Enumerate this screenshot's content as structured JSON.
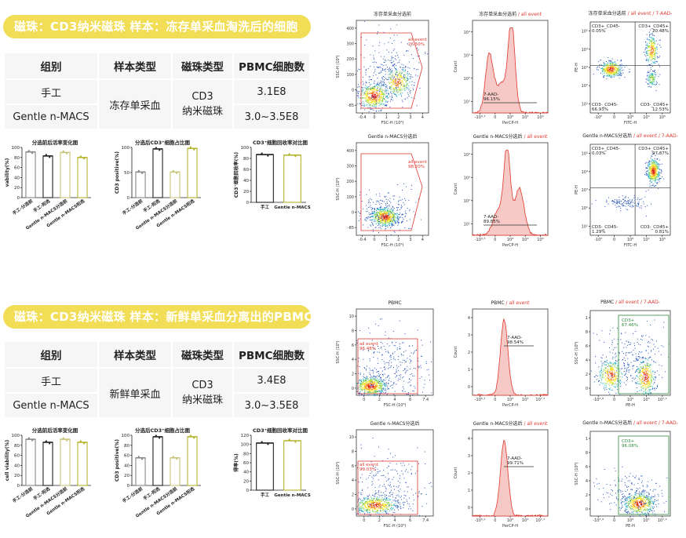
{
  "sections": [
    {
      "banner": "磁珠：CD3纳米磁珠   样本：冻存单采血淘洗后的细胞",
      "table": {
        "headers": [
          "组别",
          "样本类型",
          "磁珠类型",
          "PBMC细胞数"
        ],
        "row1": {
          "group": "手工",
          "count": "3.1E8"
        },
        "row2": {
          "group": "Gentle n-MACS",
          "count": "3.0~3.5E8"
        },
        "sample_type": "冻存单采血",
        "bead_type_l1": "CD3",
        "bead_type_l2": "纳米磁珠"
      },
      "bar_charts": [
        {
          "title": "分选前后活率变化图",
          "ylabel": "vability(%)",
          "ylim": [
            0,
            100
          ],
          "ticks": [
            "0",
            "20",
            "40",
            "60",
            "80",
            "100"
          ],
          "categories": [
            "手工-分选前",
            "手工-阳选",
            "Gentle n-MACS分选前",
            "Gentle n-MACS阳选"
          ],
          "values": [
            91,
            83,
            90,
            80
          ],
          "colors": [
            "#888888",
            "#222222",
            "#c9c47a",
            "#b5b32c"
          ]
        },
        {
          "title": "分选后CD3⁺细胞占比图",
          "ylabel": "CD3 positive(%)",
          "ylim": [
            0,
            100
          ],
          "ticks": [
            "0",
            "50",
            "100"
          ],
          "categories": [
            "手工-分选前",
            "手工-阳选",
            "Gentle n-MACS分选前",
            "Gentle n-MACS阳选"
          ],
          "values": [
            51,
            97,
            51,
            98
          ],
          "colors": [
            "#888888",
            "#222222",
            "#c9c47a",
            "#b5b32c"
          ]
        },
        {
          "title": "CD3⁺细胞回收率对比图",
          "ylabel": "CD3⁺细胞回收率(%)",
          "ylim": [
            0,
            100
          ],
          "ticks": [
            "0",
            "20",
            "40",
            "60",
            "80",
            "100"
          ],
          "categories": [
            "手工",
            "Gentle n-MACS"
          ],
          "values": [
            87,
            86
          ],
          "colors": [
            "#222222",
            "#b5b32c"
          ]
        }
      ],
      "flow_rows": [
        {
          "scatter_title": "冻存单采血分选前",
          "scatter_gate": "all event",
          "scatter_pct": "26.50%",
          "hist_title": "冻存单采血分选前",
          "hist_suffix": "/ all event",
          "hist_label": "7-AAD-",
          "hist_pct": "96.15%",
          "quad_title": "冻存单采血分选前",
          "quad_suffix": "/ all event / 7-AAD-",
          "q_ul": "CD3+_CD45-",
          "q_ul_v": "0.05%",
          "q_ur": "CD3+_CD45+",
          "q_ur_v": "20.48%",
          "q_ll": "CD3-_CD45-",
          "q_ll_v": "66.93%",
          "q_lr": "CD3-_CD45+",
          "q_lr_v": "12.53%"
        },
        {
          "scatter_title": "Gentle n-MACS分选后",
          "scatter_gate": "all event",
          "scatter_pct": "98.20%",
          "hist_title": "Gentle n-MACS分选后",
          "hist_suffix": "/ all event",
          "hist_label": "7-AAD-",
          "hist_pct": "89.85%",
          "quad_title": "Gentle n-MACS分选后",
          "quad_suffix": "/ all event / 7-AAD-",
          "q_ul": "CD3+_CD45-",
          "q_ul_v": "0.03%",
          "q_ur": "CD3+_CD45+",
          "q_ur_v": "97.87%",
          "q_ll": "CD3-_CD45-",
          "q_ll_v": "1.29%",
          "q_lr": "CD3-_CD45+",
          "q_lr_v": "0.81%"
        }
      ]
    },
    {
      "banner": "磁珠：CD3纳米磁珠   样本：新鲜单采血分离出的PBMC",
      "table": {
        "headers": [
          "组别",
          "样本类型",
          "磁珠类型",
          "PBMC细胞数"
        ],
        "row1": {
          "group": "手工",
          "count": "3.4E8"
        },
        "row2": {
          "group": "Gentle n-MACS",
          "count": "3.0~3.5E8"
        },
        "sample_type": "新鲜单采血",
        "bead_type_l1": "CD3",
        "bead_type_l2": "纳米磁珠"
      },
      "bar_charts": [
        {
          "title": "分选前后活率变化图",
          "ylabel": "cell viability(%)",
          "ylim": [
            0,
            100
          ],
          "ticks": [
            "0",
            "20",
            "40",
            "60",
            "80",
            "100"
          ],
          "categories": [
            "手工-分选前",
            "手工-阳选",
            "Gentle n-MACS分选前",
            "Gentle n-MACS阳选"
          ],
          "values": [
            92,
            86,
            92,
            86
          ],
          "colors": [
            "#888888",
            "#222222",
            "#c9c47a",
            "#b5b32c"
          ]
        },
        {
          "title": "分选后CD3⁺细胞占比图",
          "ylabel": "CD3 positive(%)",
          "ylim": [
            0,
            100
          ],
          "ticks": [
            "0",
            "20",
            "40",
            "60",
            "80",
            "100"
          ],
          "categories": [
            "手工-分选前",
            "手工-阳选",
            "Gentle n-MACS分选前",
            "Gentle n-MACS阳选"
          ],
          "values": [
            55,
            97,
            55,
            97
          ],
          "colors": [
            "#888888",
            "#222222",
            "#c9c47a",
            "#b5b32c"
          ]
        },
        {
          "title": "CD3⁺细胞回收率对比图",
          "ylabel": "得率(%)",
          "ylim": [
            0,
            120
          ],
          "ticks": [
            "0",
            "20",
            "40",
            "60",
            "80",
            "100",
            "120"
          ],
          "categories": [
            "手工",
            "Gentle n-MACS"
          ],
          "values": [
            103,
            108
          ],
          "colors": [
            "#222222",
            "#b5b32c"
          ]
        }
      ],
      "flow_rows": [
        {
          "scatter_title": "PBMC",
          "scatter_gate": "all event",
          "scatter_pct": "96.48%",
          "hist_title": "PBMC",
          "hist_suffix": "/ all event",
          "hist_label": "7-AAD-",
          "hist_pct": "98.54%",
          "quad_title": "PBMC",
          "quad_suffix": "/ all event / 7-AAD-",
          "gate_label": "CD3+",
          "gate_pct": "67.46%"
        },
        {
          "scatter_title": "Gentle n-MACS分选后",
          "scatter_gate": "all event",
          "scatter_pct": "99.03%",
          "hist_title": "Gentle n-MACS分选后",
          "hist_suffix": "/ all event",
          "hist_label": "7-AAD-",
          "hist_pct": "99.71%",
          "quad_title": "Gentle n-MACS分选后",
          "quad_suffix": "/ all event / 7-AAD-",
          "gate_label": "CD3+",
          "gate_pct": "96.08%"
        }
      ]
    }
  ],
  "axis_labels": {
    "ssc": "SSC-H (10⁶)",
    "fsc": "FSC-H (10⁶)",
    "count": "Count",
    "percp": "PerCP-H",
    "pe": "PE-H",
    "fitc": "FITC-H",
    "ssc2": "SSC-H (10⁵)"
  },
  "colors": {
    "banner": "#f2dd57",
    "gate_red": "#e0382e",
    "gate_green": "#2d8a3a",
    "hist_fill": "#f6c9c6"
  }
}
